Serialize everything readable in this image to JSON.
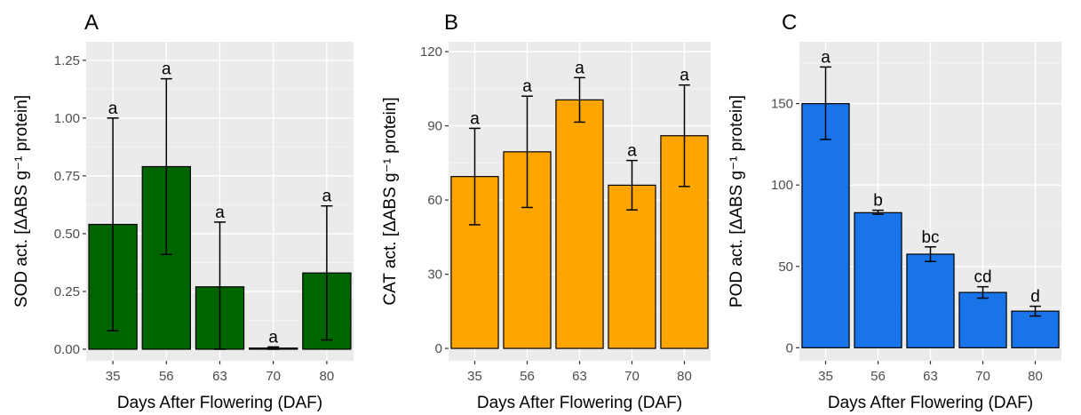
{
  "chart_data": [
    {
      "type": "bar",
      "panel": "A",
      "categories": [
        "35",
        "56",
        "63",
        "70",
        "80"
      ],
      "values": [
        0.54,
        0.79,
        0.27,
        0.005,
        0.33
      ],
      "error_low": [
        0.08,
        0.41,
        0.0,
        0.0,
        0.04
      ],
      "error_high": [
        1.0,
        1.17,
        0.55,
        0.01,
        0.62
      ],
      "sig_labels": [
        "a",
        "a",
        "a",
        "a",
        "a"
      ],
      "xlabel": "Days After Flowering (DAF)",
      "ylabel": "SOD act. [ΔABS g⁻¹ protein]",
      "ylim": [
        -0.05,
        1.33
      ],
      "yticks": [
        "0.00",
        "0.25",
        "0.50",
        "0.75",
        "1.00",
        "1.25"
      ],
      "ytick_values": [
        0,
        0.25,
        0.5,
        0.75,
        1.0,
        1.25
      ],
      "bar_color": "#006400",
      "grid": true
    },
    {
      "type": "bar",
      "panel": "B",
      "categories": [
        "35",
        "56",
        "63",
        "70",
        "80"
      ],
      "values": [
        69.5,
        79.5,
        100.5,
        66,
        86
      ],
      "error_low": [
        50,
        57,
        91.5,
        56,
        65.5
      ],
      "error_high": [
        89,
        102,
        109.5,
        76,
        106.5
      ],
      "sig_labels": [
        "a",
        "a",
        "a",
        "a",
        "a"
      ],
      "xlabel": "Days After Flowering (DAF)",
      "ylabel": "CAT act. [ΔABS g⁻¹ protein]",
      "ylim": [
        -5,
        124
      ],
      "yticks": [
        "0",
        "30",
        "60",
        "90",
        "120"
      ],
      "ytick_values": [
        0,
        30,
        60,
        90,
        120
      ],
      "bar_color": "#FFA500",
      "grid": true
    },
    {
      "type": "bar",
      "panel": "C",
      "categories": [
        "35",
        "56",
        "63",
        "70",
        "80"
      ],
      "values": [
        150,
        83,
        57.5,
        34,
        22.5
      ],
      "error_low": [
        128,
        82,
        53,
        30.5,
        19.5
      ],
      "error_high": [
        172.5,
        84.5,
        62,
        37.5,
        25.5
      ],
      "sig_labels": [
        "a",
        "b",
        "bc",
        "cd",
        "d"
      ],
      "xlabel": "Days After Flowering (DAF)",
      "ylabel": "POD act. [ΔABS g⁻¹ protein]",
      "ylim": [
        -8,
        188
      ],
      "yticks": [
        "0",
        "50",
        "100",
        "150"
      ],
      "ytick_values": [
        0,
        50,
        100,
        150
      ],
      "bar_color": "#1874E8",
      "grid": true
    }
  ]
}
